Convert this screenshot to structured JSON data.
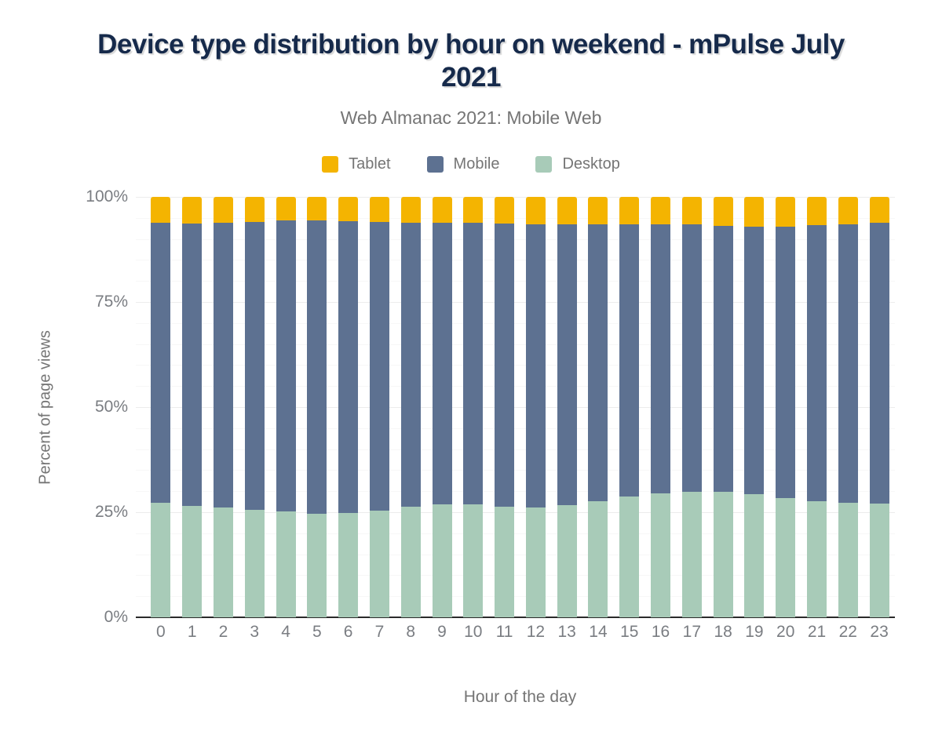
{
  "title": "Device type distribution by hour on weekend - mPulse July 2021",
  "subtitle": "Web Almanac 2021: Mobile Web",
  "legend": [
    {
      "label": "Tablet",
      "color": "#F4B401"
    },
    {
      "label": "Mobile",
      "color": "#5D7191"
    },
    {
      "label": "Desktop",
      "color": "#A8CBB8"
    }
  ],
  "axes": {
    "x_title": "Hour of the day",
    "y_title": "Percent of page views",
    "y_tick_labels": [
      "0%",
      "25%",
      "50%",
      "75%",
      "100%"
    ],
    "y_tick_percents": [
      0,
      25,
      50,
      75,
      100
    ]
  },
  "colors": {
    "title_text": "#162A4B",
    "muted_text": "#757575",
    "tick_text": "#7a7d82",
    "major_gridline": "#ececec",
    "minor_gridline": "#f7f7f7",
    "axis_baseline": "#2a2a2a",
    "background": "#ffffff"
  },
  "chart_data": {
    "type": "bar",
    "stacked": true,
    "title": "Device type distribution by hour on weekend - mPulse July 2021",
    "subtitle": "Web Almanac 2021: Mobile Web",
    "xlabel": "Hour of the day",
    "ylabel": "Percent of page views",
    "ylim": [
      0,
      100
    ],
    "grid": "horizontal, major every 25% with faint minor every 5%",
    "legend_position": "top",
    "categories": [
      "0",
      "1",
      "2",
      "3",
      "4",
      "5",
      "6",
      "7",
      "8",
      "9",
      "10",
      "11",
      "12",
      "13",
      "14",
      "15",
      "16",
      "17",
      "18",
      "19",
      "20",
      "21",
      "22",
      "23"
    ],
    "stack_order_bottom_to_top": [
      "Desktop",
      "Mobile",
      "Tablet"
    ],
    "series": [
      {
        "name": "Desktop",
        "color": "#A8CBB8",
        "values": [
          27.3,
          26.5,
          26.1,
          25.5,
          25.1,
          24.7,
          24.9,
          25.4,
          26.3,
          26.9,
          26.9,
          26.3,
          26.2,
          26.7,
          27.6,
          28.8,
          29.4,
          29.9,
          29.8,
          29.3,
          28.3,
          27.7,
          27.2,
          27.1
        ]
      },
      {
        "name": "Mobile",
        "color": "#5D7191",
        "values": [
          66.6,
          67.2,
          67.7,
          68.5,
          69.3,
          69.7,
          69.3,
          68.6,
          67.6,
          67.0,
          66.9,
          67.3,
          67.2,
          66.7,
          65.8,
          64.6,
          64.0,
          63.5,
          63.3,
          63.7,
          64.7,
          65.5,
          66.2,
          66.7
        ]
      },
      {
        "name": "Tablet",
        "color": "#F4B401",
        "values": [
          6.1,
          6.3,
          6.2,
          6.0,
          5.6,
          5.6,
          5.8,
          6.0,
          6.1,
          6.1,
          6.2,
          6.4,
          6.6,
          6.6,
          6.6,
          6.6,
          6.6,
          6.6,
          6.9,
          7.0,
          7.0,
          6.8,
          6.6,
          6.2
        ]
      }
    ]
  }
}
